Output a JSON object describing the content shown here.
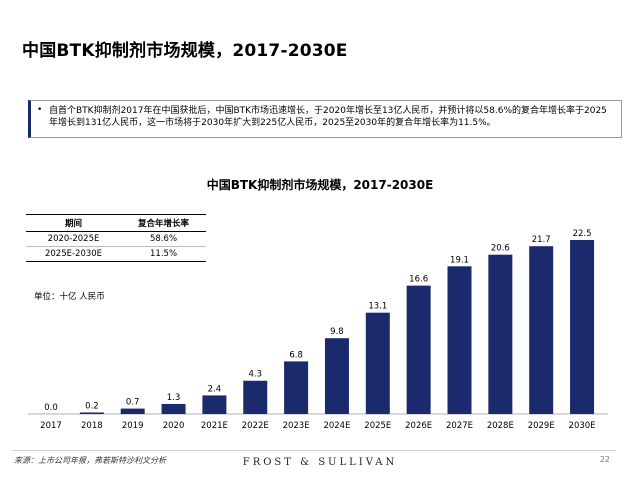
{
  "page": {
    "title": "中国BTK抑制剂市场规模，2017-2030E",
    "summary": "自首个BTK抑制剂2017年在中国获批后，中国BTK市场迅速增长，于2020年增长至13亿人民币，并预计将以58.6%的复合年增长率于2025年增长到131亿人民币，这一市场将于2030年扩大到225亿人民币，2025至2030年的复合年增长率为11.5%。",
    "bullet": "•",
    "unit": "单位：十亿 人民币",
    "source": "来源：上市公司年报，弗若斯特沙利文分析",
    "brand": "FROST & SULLIVAN",
    "page_number": "22"
  },
  "cagr_table": {
    "headers": [
      "期间",
      "复合年增长率"
    ],
    "rows": [
      [
        "2020-2025E",
        "58.6%"
      ],
      [
        "2025E-2030E",
        "11.5%"
      ]
    ]
  },
  "chart_data": {
    "type": "bar",
    "title": "中国BTK抑制剂市场规模，2017-2030E",
    "xlabel": "",
    "ylabel": "",
    "categories": [
      "2017",
      "2018",
      "2019",
      "2020",
      "2021E",
      "2022E",
      "2023E",
      "2024E",
      "2025E",
      "2026E",
      "2027E",
      "2028E",
      "2029E",
      "2030E"
    ],
    "values": [
      0.0,
      0.2,
      0.7,
      1.3,
      2.4,
      4.3,
      6.8,
      9.8,
      13.1,
      16.6,
      19.1,
      20.6,
      21.7,
      22.5
    ],
    "value_labels": [
      "0.0",
      "0.2",
      "0.7",
      "1.3",
      "2.4",
      "4.3",
      "6.8",
      "9.8",
      "13.1",
      "16.6",
      "19.1",
      "20.6",
      "21.7",
      "22.5"
    ],
    "ylim": [
      0,
      22.5
    ],
    "grid": false,
    "colors": {
      "bar": "#1a2a6c",
      "axis": "#b0b0b0",
      "label": "#000000"
    }
  }
}
